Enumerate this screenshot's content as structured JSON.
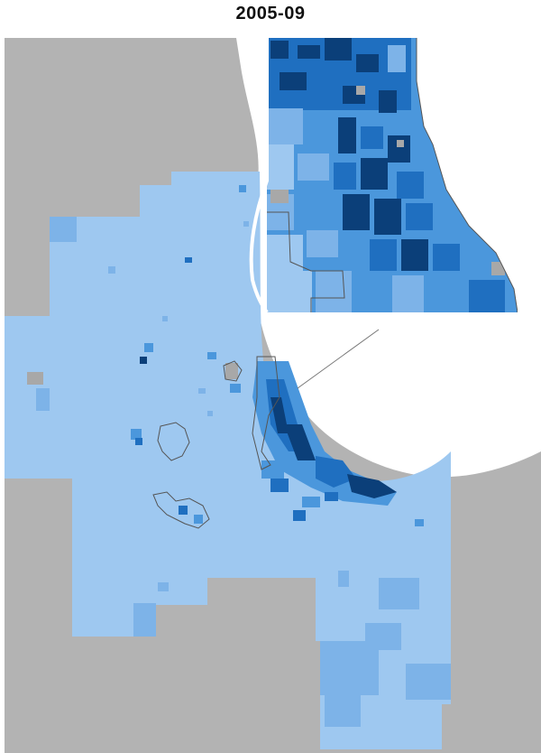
{
  "map": {
    "title": "2005-09",
    "colors": {
      "outside_region": "#b3b3b3",
      "lake": "#ffffff",
      "tier_lowest": "#9ec8f0",
      "tier_low": "#7db3e8",
      "tier_mid": "#4b97dc",
      "tier_high": "#1f6fc0",
      "tier_highest": "#0b3f79",
      "no_data": "#a8a8a8",
      "boundary_outline": "#555555"
    },
    "features": {
      "inset": "inset-map-city-detail",
      "connector": "inset-callout-line",
      "boundaries": "municipal-boundary-outlines"
    }
  }
}
